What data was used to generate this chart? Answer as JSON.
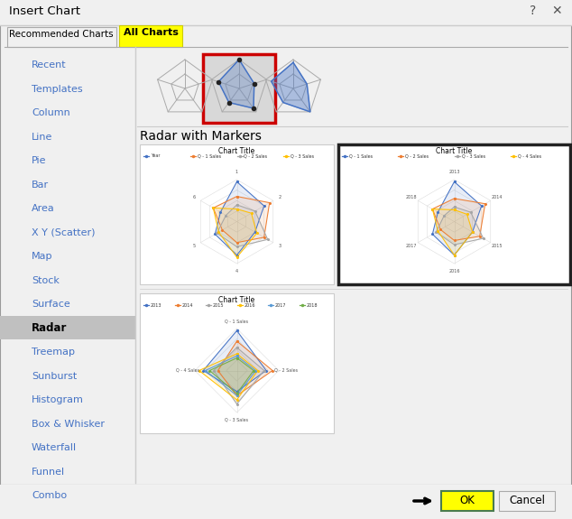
{
  "title": "Insert Chart",
  "tab_recommended": "Recommended Charts",
  "tab_all": "All Charts",
  "menu_items": [
    "Recent",
    "Templates",
    "Column",
    "Line",
    "Pie",
    "Bar",
    "Area",
    "X Y (Scatter)",
    "Map",
    "Stock",
    "Surface",
    "Radar",
    "Treemap",
    "Sunburst",
    "Histogram",
    "Box & Whisker",
    "Waterfall",
    "Funnel",
    "Combo"
  ],
  "bg_color": "#f0f0f0",
  "panel_bg": "#f0f0f0",
  "white": "#ffffff",
  "ok_color": "#ffff00",
  "ok_border": "#4a7c4e",
  "menu_blue": "#4472c4",
  "menu_highlight_bg": "#c8c8c8",
  "radar_highlighted": "Radar",
  "section_title": "Radar with Markers",
  "series_colors_main": [
    "#4472c4",
    "#ed7d31",
    "#a5a5a5",
    "#ffc000"
  ],
  "series_colors_extra": [
    "#4472c4",
    "#ed7d31",
    "#a5a5a5",
    "#ffc000",
    "#5b9bd5",
    "#70ad47"
  ]
}
